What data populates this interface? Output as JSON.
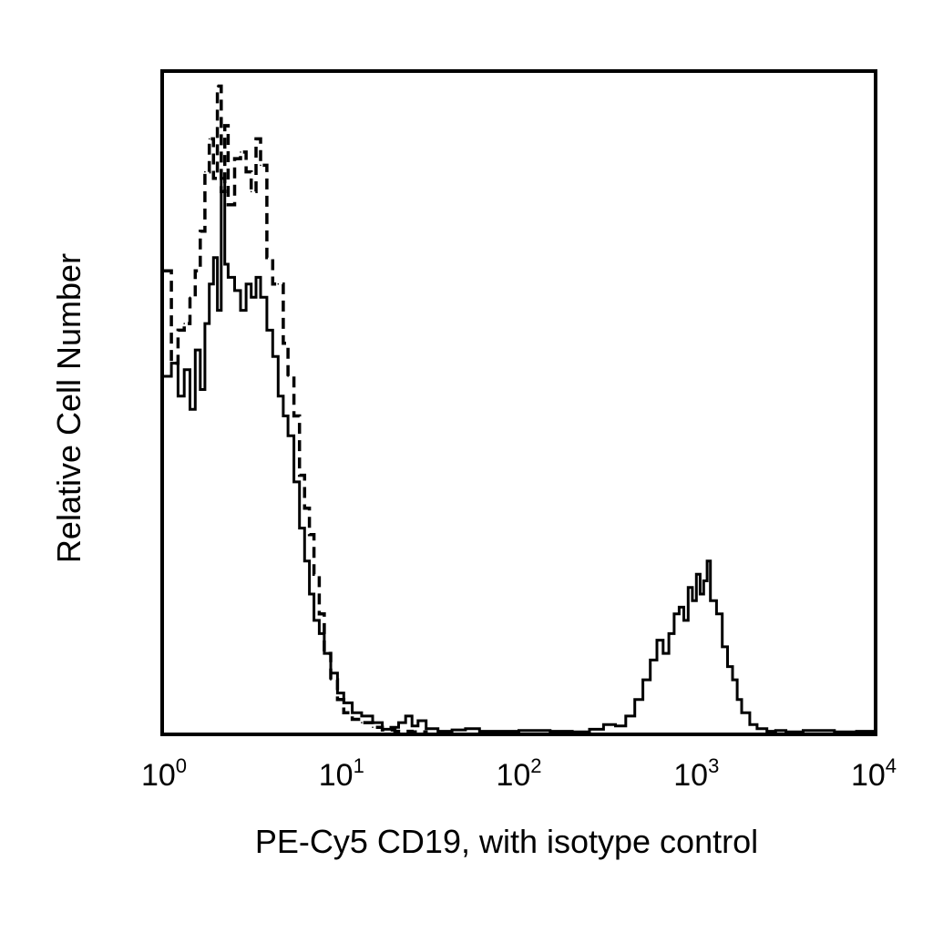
{
  "chart_data": {
    "type": "line",
    "title": "",
    "xlabel": "PE-Cy5 CD19, with isotype control",
    "ylabel": "Relative Cell Number",
    "x_scale": "log",
    "xlim": [
      1,
      10000
    ],
    "ylim": [
      0,
      100
    ],
    "grid": false,
    "legend": "none",
    "x_ticks": [
      {
        "base": "10",
        "exp": "0",
        "value": 1
      },
      {
        "base": "10",
        "exp": "1",
        "value": 10
      },
      {
        "base": "10",
        "exp": "2",
        "value": 100
      },
      {
        "base": "10",
        "exp": "3",
        "value": 1000
      },
      {
        "base": "10",
        "exp": "4",
        "value": 10000
      }
    ],
    "series": [
      {
        "style": "solid",
        "x": [
          1.0,
          1.1,
          1.2,
          1.3,
          1.4,
          1.5,
          1.6,
          1.7,
          1.8,
          1.9,
          2.0,
          2.1,
          2.2,
          2.3,
          2.5,
          2.7,
          2.9,
          3.1,
          3.3,
          3.5,
          3.8,
          4.1,
          4.4,
          4.7,
          5.0,
          5.4,
          5.8,
          6.2,
          6.6,
          7.0,
          7.5,
          8.0,
          8.7,
          9.5,
          10.3,
          11.5,
          13,
          15,
          17,
          19,
          21,
          23,
          25,
          27,
          30,
          35,
          42,
          50,
          60,
          80,
          100,
          150,
          200,
          250,
          300,
          350,
          400,
          450,
          500,
          550,
          600,
          650,
          700,
          750,
          800,
          850,
          900,
          950,
          1000,
          1050,
          1100,
          1150,
          1200,
          1300,
          1400,
          1500,
          1600,
          1700,
          1800,
          2000,
          2200,
          2500,
          2800,
          3200,
          4000,
          6000,
          8000,
          10000
        ],
        "y": [
          54,
          56,
          51,
          55,
          49,
          58,
          52,
          62,
          68,
          72,
          64,
          84,
          71,
          69,
          67,
          64,
          68,
          66,
          69,
          66,
          61,
          57,
          51,
          48,
          45,
          38,
          31,
          26,
          21,
          17,
          15,
          12,
          9,
          6,
          4.5,
          3,
          2.5,
          1.5,
          0.5,
          0.8,
          1.5,
          2.5,
          1.0,
          1.8,
          0.6,
          0.2,
          0.4,
          0.6,
          0.2,
          0.2,
          0.3,
          0.2,
          0.1,
          0.5,
          1.2,
          1.0,
          2.5,
          5,
          8,
          11,
          14,
          12,
          15,
          18,
          19,
          17,
          22,
          20,
          24,
          21,
          23,
          26,
          20,
          18,
          13,
          10,
          8,
          5,
          3,
          1.2,
          0.6,
          0.2,
          0.3,
          0.1,
          0.3,
          0.1,
          0.2,
          0.0
        ]
      },
      {
        "style": "dashed",
        "x": [
          1.0,
          1.1,
          1.2,
          1.3,
          1.4,
          1.5,
          1.6,
          1.7,
          1.8,
          1.9,
          2.0,
          2.1,
          2.2,
          2.3,
          2.5,
          2.7,
          2.9,
          3.1,
          3.3,
          3.5,
          3.8,
          4.1,
          4.4,
          4.7,
          5.0,
          5.4,
          5.8,
          6.2,
          6.6,
          7.0,
          7.5,
          8.0,
          8.7,
          9.5,
          10.3,
          11.5,
          13,
          15,
          17,
          20,
          25,
          30
        ],
        "y": [
          70,
          56,
          61,
          62,
          66,
          70,
          76,
          85,
          90,
          84,
          98,
          82,
          92,
          80,
          87,
          88,
          85,
          82,
          90,
          86,
          72,
          68,
          68,
          59,
          54,
          48,
          39,
          34,
          30,
          24,
          18,
          12,
          8,
          5.0,
          3.0,
          2.0,
          1.5,
          0.8,
          0.4,
          0.2,
          0.1,
          0.0
        ]
      }
    ]
  }
}
